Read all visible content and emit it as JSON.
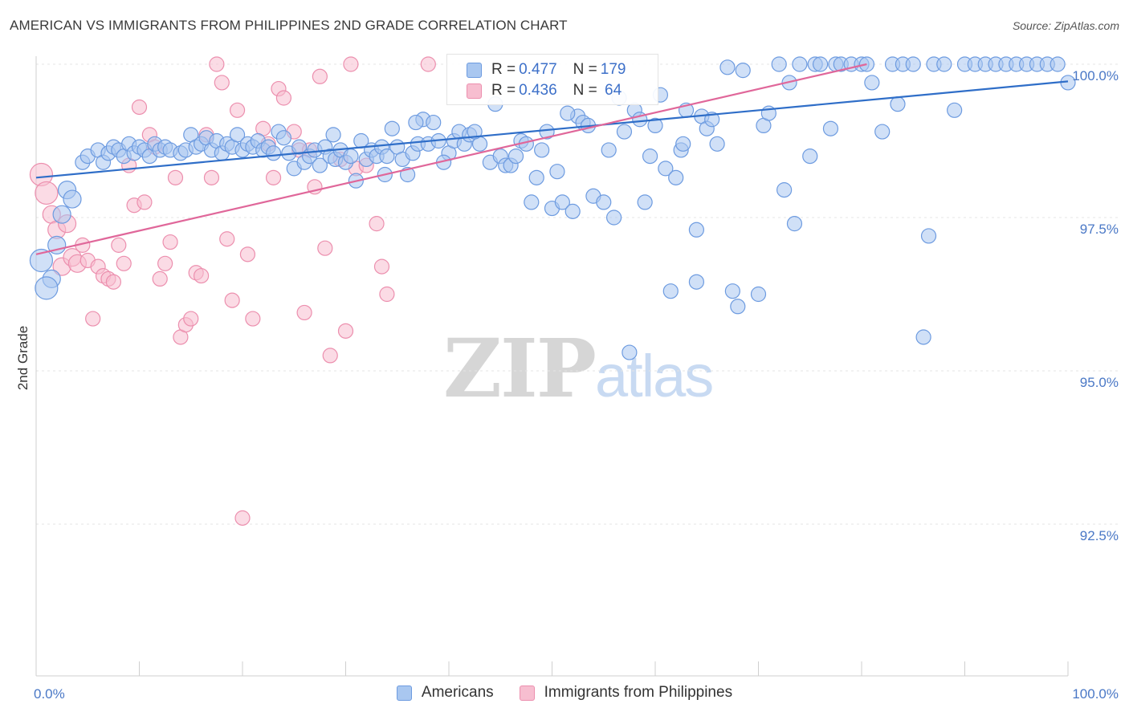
{
  "title": "AMERICAN VS IMMIGRANTS FROM PHILIPPINES 2ND GRADE CORRELATION CHART",
  "source": "Source: ZipAtlas.com",
  "watermark": {
    "part1": "ZIP",
    "part2": "atlas"
  },
  "legend": {
    "rows": [
      {
        "r_label": "R = ",
        "r_value": "0.477",
        "n_label": "N = ",
        "n_value": "179"
      },
      {
        "r_label": "R = ",
        "r_value": "0.436",
        "n_label": "N = ",
        "n_value": " 64"
      }
    ]
  },
  "bottom_legend": [
    "Americans",
    "Immigrants from Philippines"
  ],
  "colors": {
    "americans_fill": "#a9c7f0",
    "americans_stroke": "#6d9be0",
    "americans_line": "#2f6ec8",
    "philippines_fill": "#f7bed0",
    "philippines_stroke": "#ec8fae",
    "philippines_line": "#e0679a",
    "tick_text": "#4a78c6",
    "grid": "#e4e4e4"
  },
  "chart_data": {
    "type": "scatter",
    "title": "AMERICAN VS IMMIGRANTS FROM PHILIPPINES 2ND GRADE CORRELATION CHART",
    "xlabel": "",
    "ylabel": "2nd Grade",
    "xlim": [
      0,
      100
    ],
    "ylim": [
      90.2,
      100.35
    ],
    "x_tick_labels": [
      "0.0%",
      "100.0%"
    ],
    "y_ticks": [
      92.5,
      95.0,
      97.5,
      100.0
    ],
    "y_tick_labels": [
      "92.5%",
      "95.0%",
      "97.5%",
      "100.0%"
    ],
    "grid": "horizontal dashed",
    "legend_placement": "top-center",
    "series": [
      {
        "name": "Americans",
        "R": 0.477,
        "N": 179,
        "trend": [
          [
            0,
            98.15
          ],
          [
            100,
            99.72
          ]
        ],
        "points": [
          [
            0.5,
            96.8
          ],
          [
            1.5,
            96.5
          ],
          [
            2,
            97.05
          ],
          [
            2.5,
            97.55
          ],
          [
            3,
            97.95
          ],
          [
            3.5,
            97.8
          ],
          [
            1,
            96.35
          ],
          [
            4.5,
            98.4
          ],
          [
            5,
            98.5
          ],
          [
            6,
            98.6
          ],
          [
            6.5,
            98.4
          ],
          [
            7,
            98.55
          ],
          [
            7.5,
            98.65
          ],
          [
            8,
            98.6
          ],
          [
            8.5,
            98.5
          ],
          [
            9,
            98.7
          ],
          [
            9.5,
            98.55
          ],
          [
            10,
            98.65
          ],
          [
            10.5,
            98.6
          ],
          [
            11,
            98.5
          ],
          [
            11.5,
            98.7
          ],
          [
            12,
            98.6
          ],
          [
            12.5,
            98.65
          ],
          [
            13,
            98.6
          ],
          [
            14,
            98.55
          ],
          [
            14.5,
            98.6
          ],
          [
            15,
            98.85
          ],
          [
            15.5,
            98.65
          ],
          [
            16,
            98.7
          ],
          [
            16.5,
            98.8
          ],
          [
            17,
            98.6
          ],
          [
            17.5,
            98.75
          ],
          [
            18,
            98.55
          ],
          [
            18.5,
            98.7
          ],
          [
            19,
            98.65
          ],
          [
            19.5,
            98.85
          ],
          [
            20,
            98.6
          ],
          [
            20.5,
            98.7
          ],
          [
            21,
            98.65
          ],
          [
            21.5,
            98.75
          ],
          [
            22,
            98.6
          ],
          [
            22.5,
            98.65
          ],
          [
            23,
            98.55
          ],
          [
            23.5,
            98.9
          ],
          [
            24,
            98.8
          ],
          [
            24.5,
            98.55
          ],
          [
            25,
            98.3
          ],
          [
            25.5,
            98.65
          ],
          [
            26,
            98.4
          ],
          [
            26.5,
            98.5
          ],
          [
            27,
            98.6
          ],
          [
            27.5,
            98.35
          ],
          [
            28,
            98.65
          ],
          [
            28.5,
            98.5
          ],
          [
            29,
            98.45
          ],
          [
            29.5,
            98.6
          ],
          [
            30,
            98.4
          ],
          [
            30.5,
            98.5
          ],
          [
            31,
            98.1
          ],
          [
            31.5,
            98.75
          ],
          [
            32,
            98.45
          ],
          [
            32.5,
            98.6
          ],
          [
            33,
            98.5
          ],
          [
            33.5,
            98.65
          ],
          [
            34,
            98.5
          ],
          [
            34.5,
            98.95
          ],
          [
            35,
            98.65
          ],
          [
            35.5,
            98.45
          ],
          [
            36,
            98.2
          ],
          [
            36.5,
            98.55
          ],
          [
            37,
            98.7
          ],
          [
            37.5,
            99.1
          ],
          [
            38,
            98.7
          ],
          [
            38.5,
            99.05
          ],
          [
            39,
            98.75
          ],
          [
            40,
            98.55
          ],
          [
            40.5,
            98.75
          ],
          [
            41,
            98.9
          ],
          [
            41.5,
            98.7
          ],
          [
            42,
            98.85
          ],
          [
            43,
            98.7
          ],
          [
            44,
            98.4
          ],
          [
            45,
            98.5
          ],
          [
            45.5,
            98.35
          ],
          [
            46,
            98.35
          ],
          [
            46.5,
            98.5
          ],
          [
            47,
            98.75
          ],
          [
            48,
            97.75
          ],
          [
            48.5,
            98.15
          ],
          [
            49,
            98.6
          ],
          [
            50,
            97.65
          ],
          [
            50.5,
            98.25
          ],
          [
            51,
            97.75
          ],
          [
            52,
            97.6
          ],
          [
            52.5,
            99.15
          ],
          [
            53,
            99.05
          ],
          [
            53.5,
            99.0
          ],
          [
            54,
            97.85
          ],
          [
            55,
            97.75
          ],
          [
            55.5,
            98.6
          ],
          [
            56,
            97.5
          ],
          [
            56.5,
            99.45
          ],
          [
            57,
            98.9
          ],
          [
            58,
            99.25
          ],
          [
            58.5,
            99.1
          ],
          [
            59,
            97.75
          ],
          [
            59.5,
            98.5
          ],
          [
            60,
            99.0
          ],
          [
            61,
            98.3
          ],
          [
            62,
            98.15
          ],
          [
            62.5,
            98.6
          ],
          [
            63,
            99.25
          ],
          [
            64,
            97.3
          ],
          [
            64.5,
            99.15
          ],
          [
            65,
            98.95
          ],
          [
            65.5,
            99.1
          ],
          [
            66,
            98.7
          ],
          [
            67,
            99.95
          ],
          [
            67.5,
            96.3
          ],
          [
            68,
            96.05
          ],
          [
            68.5,
            99.9
          ],
          [
            70,
            96.25
          ],
          [
            70.5,
            99.0
          ],
          [
            71,
            99.2
          ],
          [
            72,
            100.0
          ],
          [
            72.5,
            97.95
          ],
          [
            73,
            99.7
          ],
          [
            73.5,
            97.4
          ],
          [
            74,
            100.0
          ],
          [
            75,
            98.5
          ],
          [
            75.5,
            100.0
          ],
          [
            76,
            100.0
          ],
          [
            77,
            98.95
          ],
          [
            77.5,
            100.0
          ],
          [
            78,
            100.0
          ],
          [
            79,
            100.0
          ],
          [
            80,
            100.0
          ],
          [
            80.5,
            100.0
          ],
          [
            81,
            99.7
          ],
          [
            82,
            98.9
          ],
          [
            83,
            100.0
          ],
          [
            83.5,
            99.35
          ],
          [
            84,
            100.0
          ],
          [
            85,
            100.0
          ],
          [
            86,
            95.55
          ],
          [
            87,
            100.0
          ],
          [
            88,
            100.0
          ],
          [
            89,
            99.25
          ],
          [
            90,
            100.0
          ],
          [
            91,
            100.0
          ],
          [
            92,
            100.0
          ],
          [
            93,
            100.0
          ],
          [
            94,
            100.0
          ],
          [
            95,
            100.0
          ],
          [
            96,
            100.0
          ],
          [
            97,
            100.0
          ],
          [
            98,
            100.0
          ],
          [
            99,
            100.0
          ],
          [
            100,
            99.7
          ],
          [
            86.5,
            97.2
          ],
          [
            60.5,
            99.5
          ],
          [
            61.5,
            96.3
          ],
          [
            64,
            96.45
          ],
          [
            57.5,
            95.3
          ],
          [
            62.7,
            98.7
          ],
          [
            47.5,
            98.7
          ],
          [
            44.5,
            99.35
          ],
          [
            51.5,
            99.2
          ],
          [
            49.5,
            98.9
          ],
          [
            39.5,
            98.4
          ],
          [
            42.5,
            98.9
          ],
          [
            36.8,
            99.05
          ],
          [
            33.8,
            98.2
          ],
          [
            28.8,
            98.85
          ]
        ]
      },
      {
        "name": "Immigrants from Philippines",
        "R": 0.436,
        "N": 64,
        "trend": [
          [
            0,
            96.9
          ],
          [
            80.5,
            100.0
          ]
        ],
        "points": [
          [
            0.5,
            98.2
          ],
          [
            1,
            97.9
          ],
          [
            1.5,
            97.55
          ],
          [
            2,
            97.3
          ],
          [
            2.5,
            96.7
          ],
          [
            3,
            97.4
          ],
          [
            3.5,
            96.85
          ],
          [
            4,
            96.75
          ],
          [
            4.5,
            97.05
          ],
          [
            5,
            96.8
          ],
          [
            5.5,
            95.85
          ],
          [
            6,
            96.7
          ],
          [
            6.5,
            96.55
          ],
          [
            7,
            96.5
          ],
          [
            7.5,
            96.45
          ],
          [
            8,
            97.05
          ],
          [
            8.5,
            96.75
          ],
          [
            9,
            98.35
          ],
          [
            9.5,
            97.7
          ],
          [
            10,
            99.3
          ],
          [
            10.5,
            97.75
          ],
          [
            11,
            98.85
          ],
          [
            11.5,
            98.65
          ],
          [
            12,
            96.5
          ],
          [
            12.5,
            96.75
          ],
          [
            13,
            97.1
          ],
          [
            13.5,
            98.15
          ],
          [
            14,
            95.55
          ],
          [
            14.5,
            95.75
          ],
          [
            15,
            95.85
          ],
          [
            15.5,
            96.6
          ],
          [
            16,
            96.55
          ],
          [
            16.5,
            98.85
          ],
          [
            17,
            98.15
          ],
          [
            17.5,
            100.0
          ],
          [
            18,
            99.7
          ],
          [
            18.5,
            97.15
          ],
          [
            19,
            96.15
          ],
          [
            19.5,
            99.25
          ],
          [
            20,
            92.6
          ],
          [
            20.5,
            96.9
          ],
          [
            21,
            95.85
          ],
          [
            22,
            98.95
          ],
          [
            22.5,
            98.7
          ],
          [
            23,
            98.15
          ],
          [
            23.5,
            99.6
          ],
          [
            24,
            99.45
          ],
          [
            25,
            98.9
          ],
          [
            25.5,
            98.6
          ],
          [
            26,
            95.95
          ],
          [
            26.5,
            98.6
          ],
          [
            27,
            98.0
          ],
          [
            27.5,
            99.8
          ],
          [
            28,
            97.0
          ],
          [
            28.5,
            95.25
          ],
          [
            29.5,
            98.45
          ],
          [
            30,
            95.65
          ],
          [
            30.5,
            100.0
          ],
          [
            31,
            98.3
          ],
          [
            32,
            98.35
          ],
          [
            33,
            97.4
          ],
          [
            33.5,
            96.7
          ],
          [
            34,
            96.25
          ],
          [
            38,
            100.0
          ]
        ]
      }
    ]
  }
}
